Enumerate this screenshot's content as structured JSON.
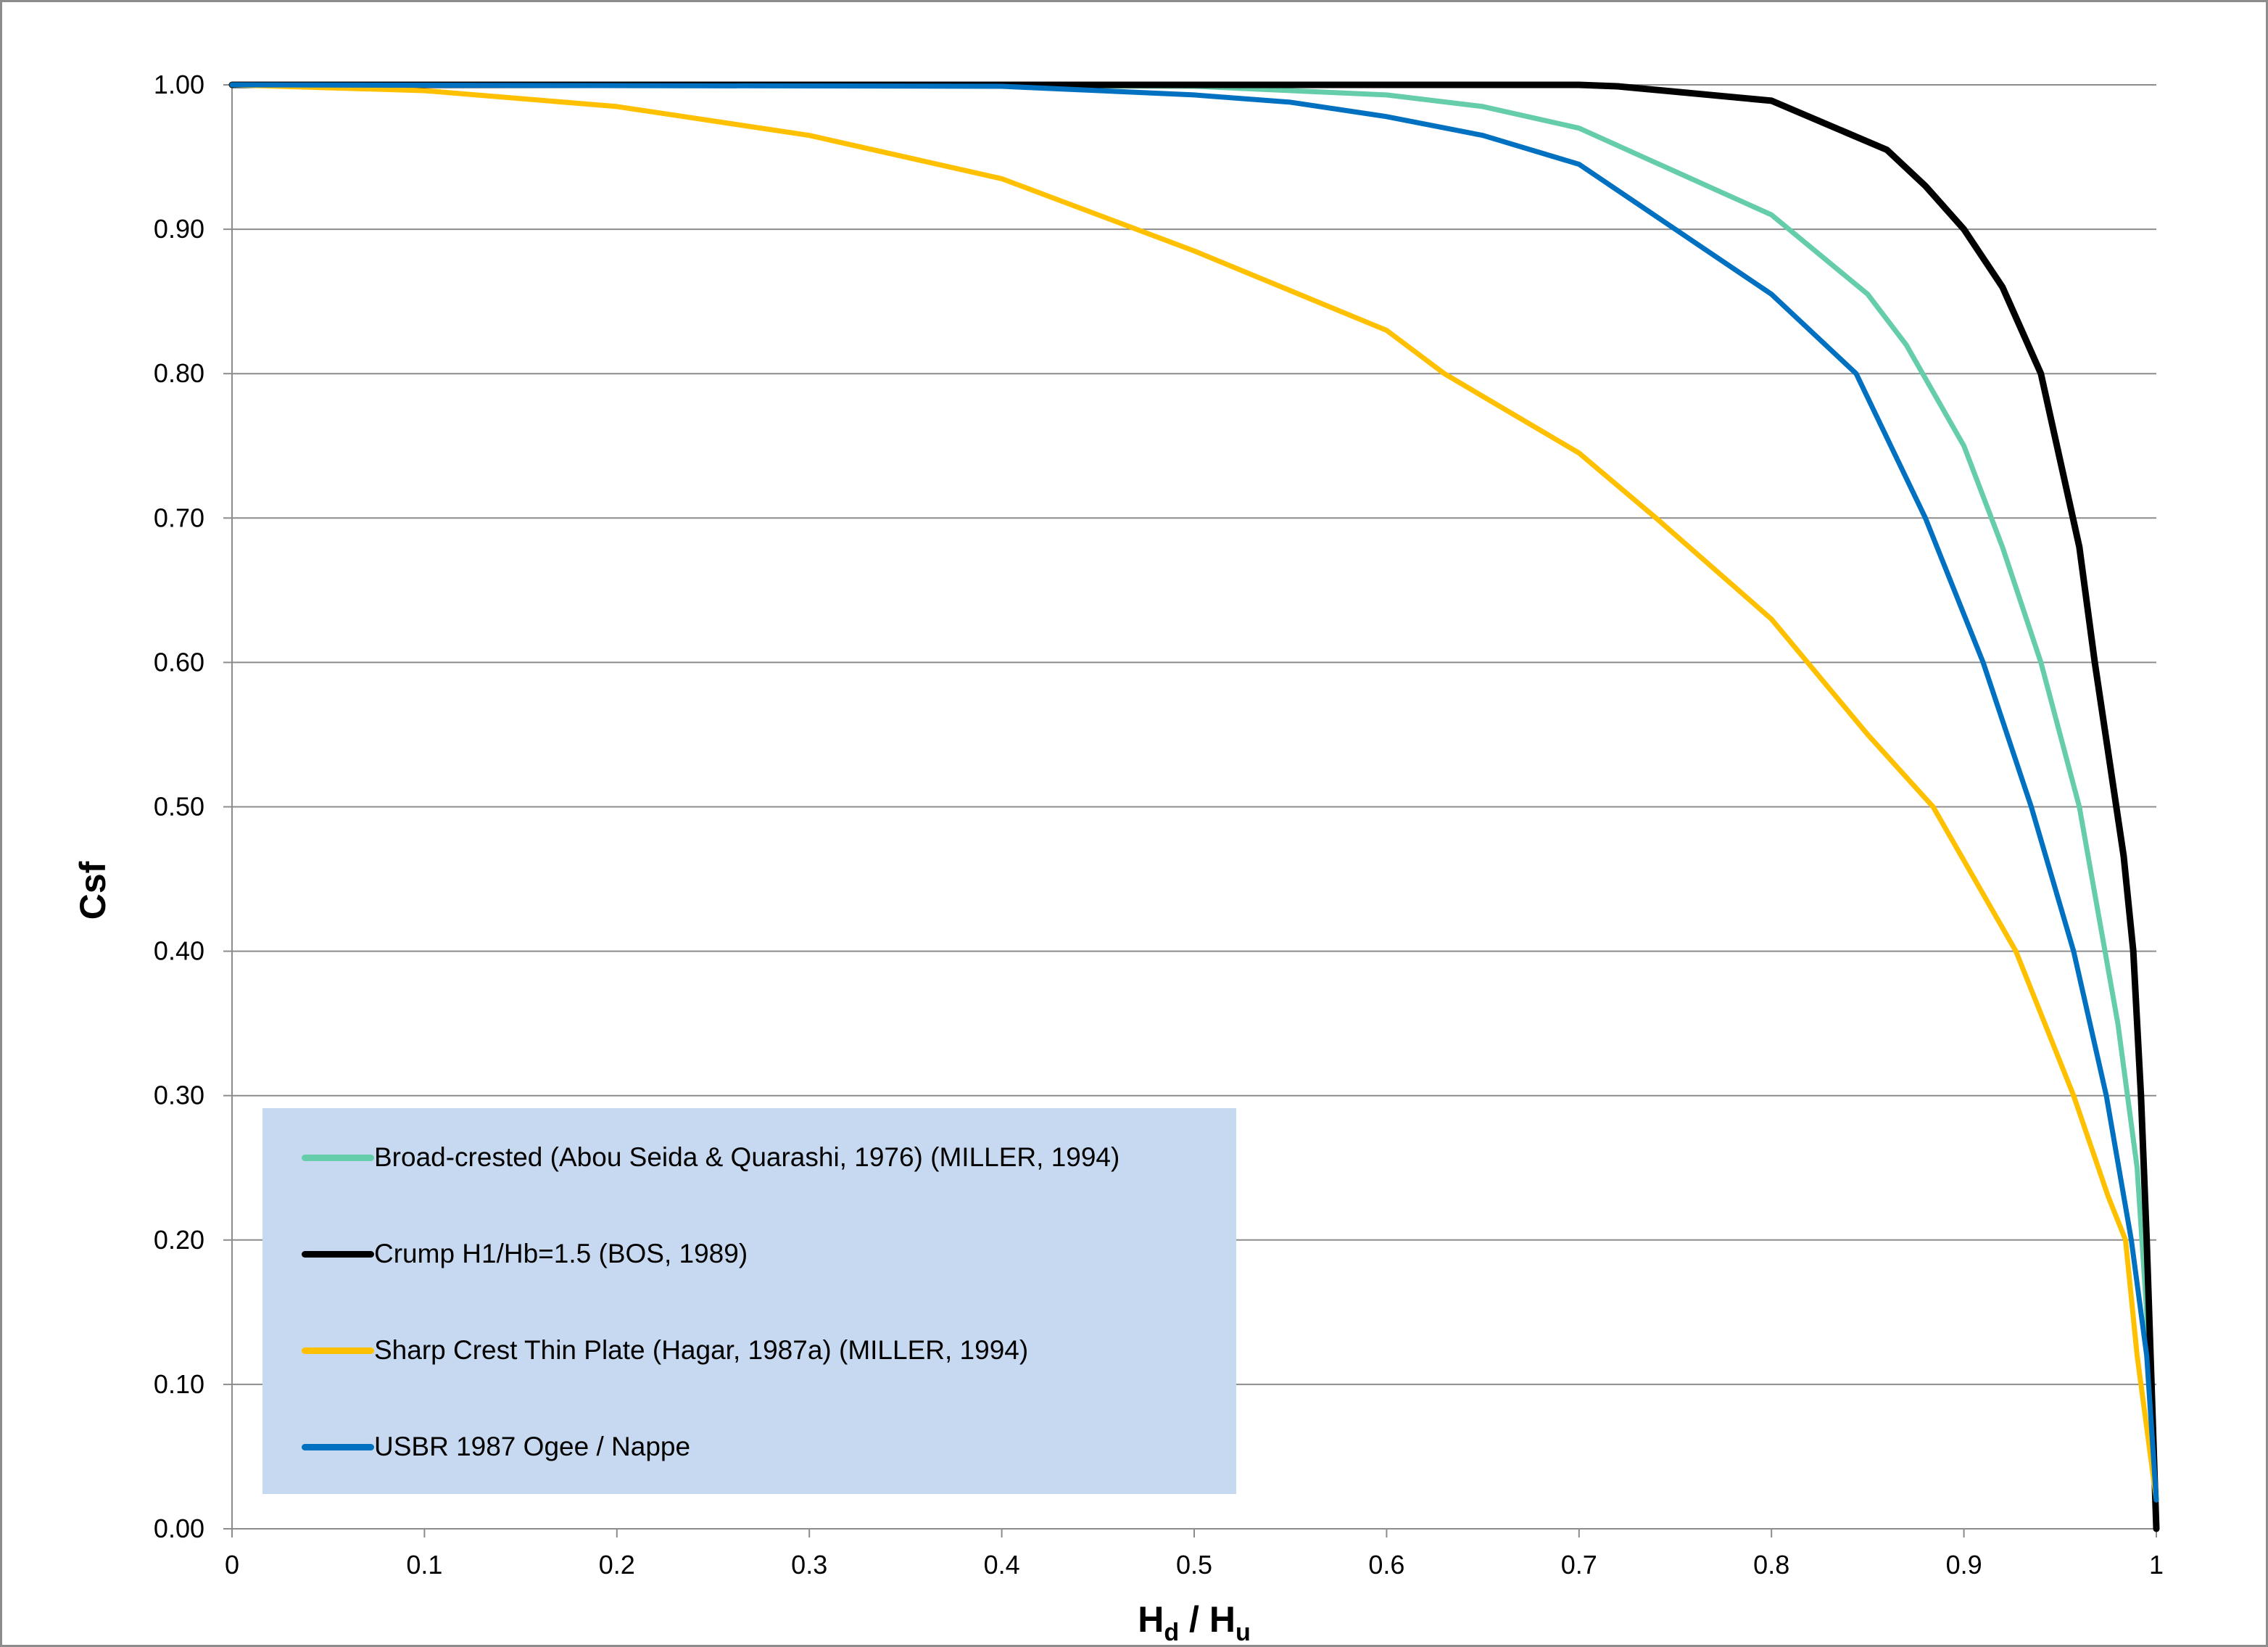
{
  "chart_data": {
    "type": "line",
    "title": "",
    "xlabel": "Hd / Hu",
    "xlabel_main": "H",
    "xlabel_sub1": "d",
    "xlabel_sep": " / H",
    "xlabel_sub2": "u",
    "ylabel": "Csf",
    "xlim": [
      0,
      1
    ],
    "ylim": [
      0,
      1
    ],
    "xticks": [
      "0",
      "0.1",
      "0.2",
      "0.3",
      "0.4",
      "0.5",
      "0.6",
      "0.7",
      "0.8",
      "0.9",
      "1"
    ],
    "yticks": [
      "0.00",
      "0.10",
      "0.20",
      "0.30",
      "0.40",
      "0.50",
      "0.60",
      "0.70",
      "0.80",
      "0.90",
      "1.00"
    ],
    "grid": "horizontal",
    "legend_position": "bottom-left",
    "series": [
      {
        "name": "Broad-crested (Abou Seida & Quarashi, 1976) (MILLER, 1994)",
        "color": "#66cdaa",
        "x": [
          0,
          0.3,
          0.5,
          0.6,
          0.65,
          0.7,
          0.75,
          0.8,
          0.85,
          0.87,
          0.9,
          0.92,
          0.94,
          0.96,
          0.98,
          0.99,
          0.995,
          1.0
        ],
        "y": [
          1.0,
          1.0,
          0.999,
          0.993,
          0.985,
          0.97,
          0.94,
          0.91,
          0.855,
          0.82,
          0.75,
          0.68,
          0.6,
          0.5,
          0.35,
          0.25,
          0.15,
          0.02
        ]
      },
      {
        "name": "Crump H1/Hb=1.5 (BOS, 1989)",
        "color": "#000000",
        "x": [
          0,
          0.5,
          0.7,
          0.72,
          0.8,
          0.86,
          0.88,
          0.9,
          0.92,
          0.94,
          0.96,
          0.968,
          0.983,
          0.988,
          0.992,
          0.995,
          1.0
        ],
        "y": [
          1.0,
          1.0,
          1.0,
          0.999,
          0.989,
          0.955,
          0.93,
          0.9,
          0.86,
          0.8,
          0.68,
          0.6,
          0.466,
          0.4,
          0.3,
          0.2,
          0.0
        ]
      },
      {
        "name": "Sharp Crest Thin Plate (Hagar, 1987a) (MILLER, 1994)",
        "color": "#ffc000",
        "x": [
          0,
          0.1,
          0.2,
          0.3,
          0.4,
          0.47,
          0.5,
          0.6,
          0.63,
          0.7,
          0.74,
          0.8,
          0.85,
          0.884,
          0.927,
          0.957,
          0.975,
          0.984,
          0.99,
          1.0
        ],
        "y": [
          1.0,
          0.996,
          0.985,
          0.965,
          0.935,
          0.9,
          0.885,
          0.83,
          0.8,
          0.745,
          0.7,
          0.63,
          0.55,
          0.5,
          0.4,
          0.3,
          0.23,
          0.2,
          0.12,
          0.02
        ]
      },
      {
        "name": "USBR 1987 Ogee / Nappe",
        "color": "#0070c0",
        "x": [
          0,
          0.4,
          0.5,
          0.55,
          0.6,
          0.65,
          0.7,
          0.75,
          0.8,
          0.844,
          0.88,
          0.91,
          0.935,
          0.957,
          0.974,
          0.987,
          0.995,
          1.0
        ],
        "y": [
          1.0,
          0.999,
          0.993,
          0.988,
          0.978,
          0.965,
          0.945,
          0.9,
          0.855,
          0.8,
          0.7,
          0.6,
          0.5,
          0.4,
          0.3,
          0.2,
          0.12,
          0.02
        ]
      }
    ]
  }
}
